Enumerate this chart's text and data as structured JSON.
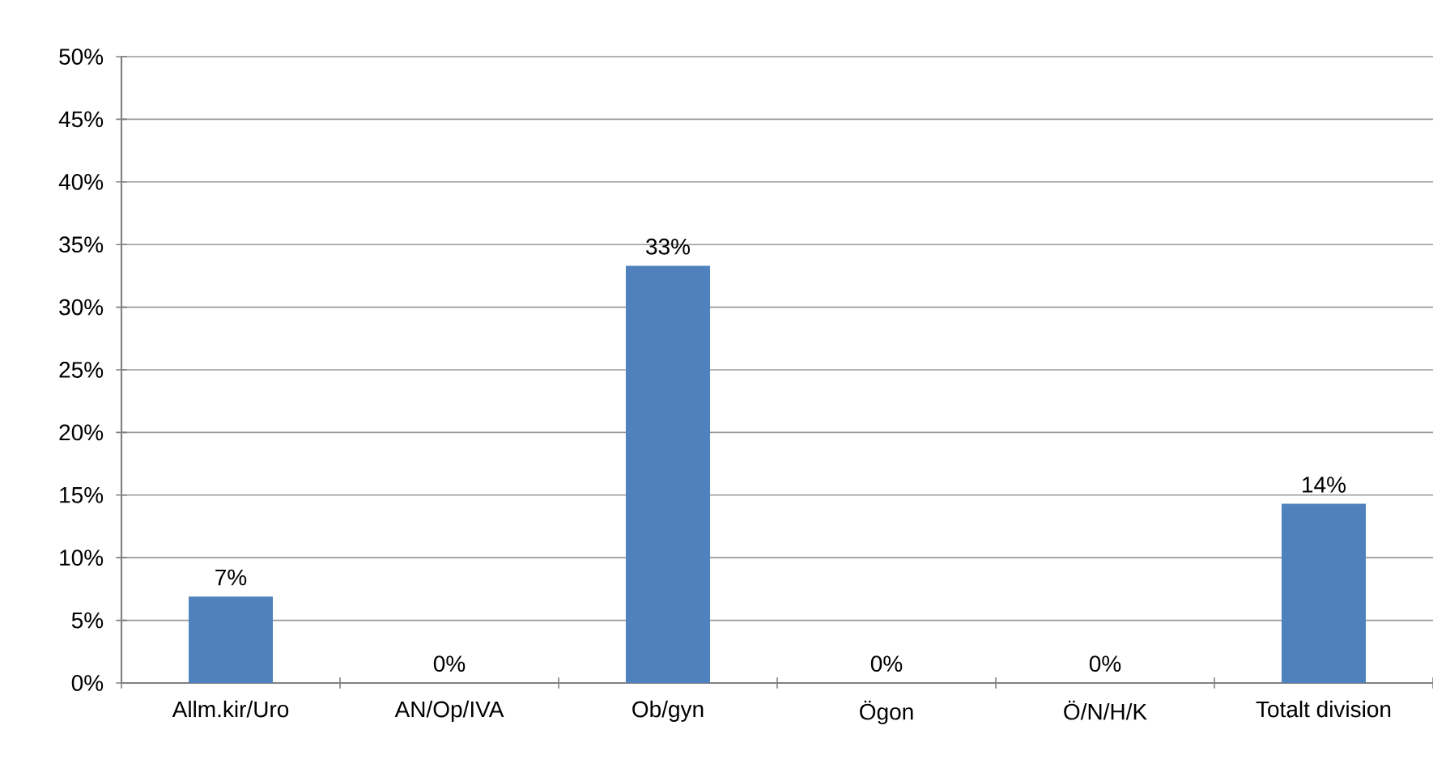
{
  "chart_data": {
    "type": "bar",
    "categories": [
      "Allm.kir/Uro",
      "AN/Op/IVA",
      "Ob/gyn",
      "Ögon",
      "Ö/N/H/K",
      "Totalt division"
    ],
    "values": [
      6.9,
      0,
      33.3,
      0,
      0,
      14.3
    ],
    "value_labels": [
      "7%",
      "0%",
      "33%",
      "0%",
      "0%",
      "14%"
    ],
    "color": "#4f81bd",
    "ylim": [
      0,
      50
    ],
    "yticks": [
      {
        "value": 0,
        "label": "0%"
      },
      {
        "value": 5,
        "label": "5%"
      },
      {
        "value": 10,
        "label": "10%"
      },
      {
        "value": 15,
        "label": "15%"
      },
      {
        "value": 20,
        "label": "20%"
      },
      {
        "value": 25,
        "label": "25%"
      },
      {
        "value": 30,
        "label": "30%"
      },
      {
        "value": 35,
        "label": "35%"
      },
      {
        "value": 40,
        "label": "40%"
      },
      {
        "value": 45,
        "label": "45%"
      },
      {
        "value": 50,
        "label": "50%"
      }
    ],
    "grid": "y"
  }
}
